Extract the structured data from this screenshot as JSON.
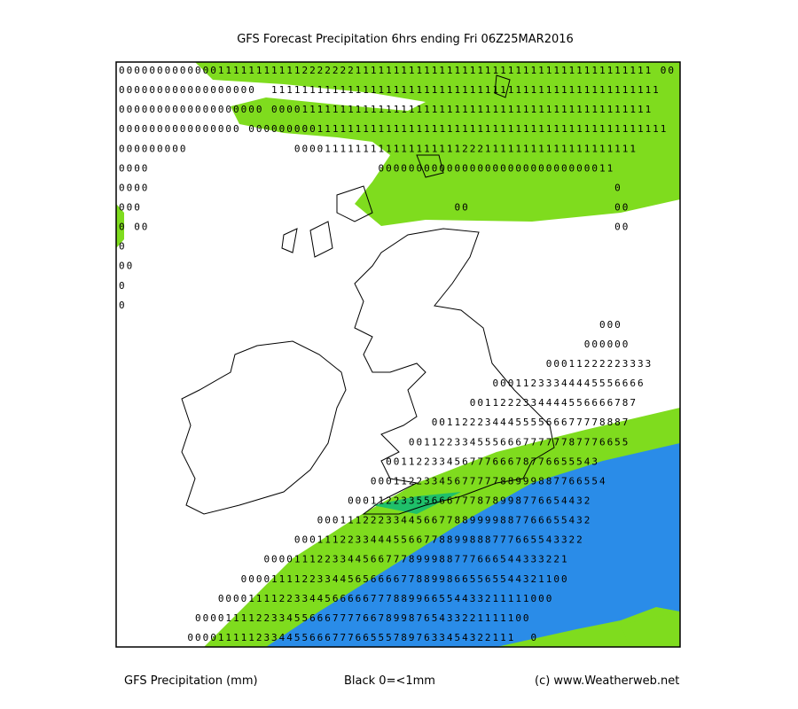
{
  "map": {
    "title": "GFS Forecast Precipitation 6hrs ending Fri 06Z25MAR2016"
  },
  "field": {
    "rows": [
      "0000000000000111111111112222222111111111111111111111111111111111111111 00",
      "000000000000000000  111111111111111111111111111111111111111111111111111",
      "0000000000000000000 00001111111111111111111111111111111111111111111111",
      "0000000000000000 0000000001111111111111111111111111111111111111111111111",
      "000000000              000011111111111111111122211111111111111111111",
      "0000                              0000000000000000000000000000011",
      "0000                                                             0",
      "000                                         00                   00",
      "0 00                                                             00",
      "0",
      "00",
      "0",
      "0",
      "                                                               000",
      "                                                             000000",
      "                                                        00011222223333",
      "                                                 00011233344445556666",
      "                                              0011222334444556666787",
      "                                         00112223444555566677778887",
      "                                      00112233455566677777787776655",
      "                                   0011223345677766678776655543",
      "                                 0001122334567777788999887766554",
      "                              00011223355666777878998776654432",
      "                          000111222334456677889999887766655432",
      "                       00011122334445566778899888777665543322",
      "                   0000111223344566777899988777666544333221",
      "                0000111122334456566667788998665565544321100",
      "             00001111223344566666777889966554433211111000",
      "          00001111223345566677776678998765433221111100",
      "         0000111112334455666777665557897633454322111  0"
    ]
  },
  "footer": {
    "left": "GFS Precipitation (mm)",
    "middle": "Black 0=<1mm",
    "right": "(c) www.Weatherweb.net"
  }
}
